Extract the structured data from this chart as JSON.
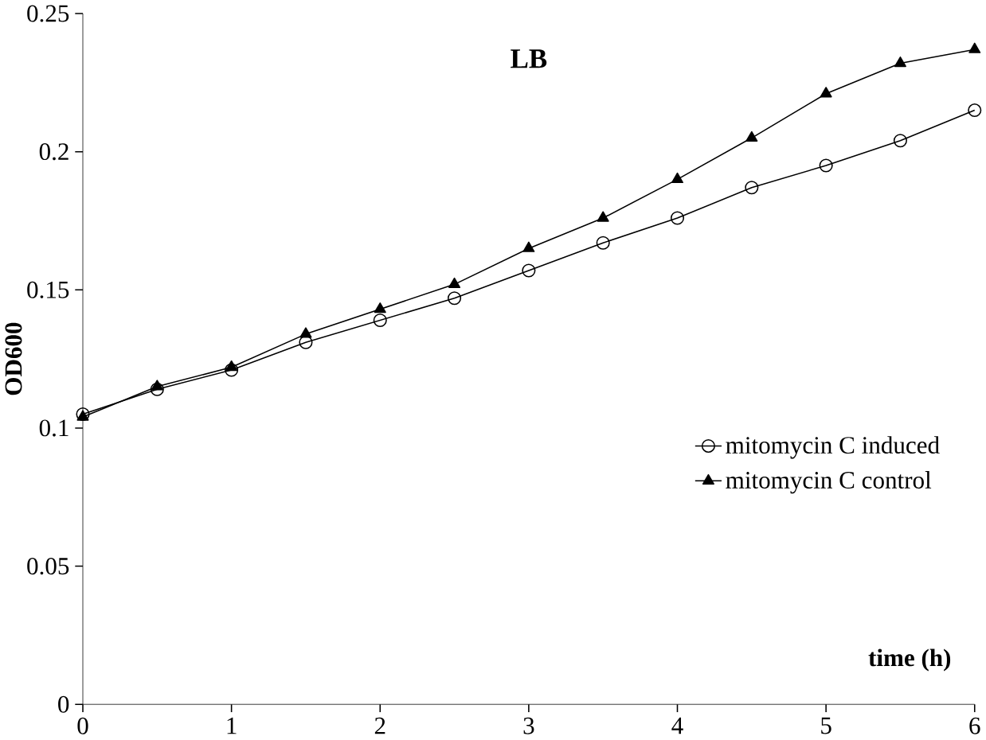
{
  "chart_data": {
    "type": "line",
    "title": "LB",
    "xlabel": "time (h)",
    "ylabel": "OD600",
    "x": [
      0,
      0.5,
      1,
      1.5,
      2,
      2.5,
      3,
      3.5,
      4,
      4.5,
      5,
      5.5,
      6
    ],
    "series": [
      {
        "name": "mitomycin  C induced",
        "color": "#000000",
        "marker": "circle",
        "values": [
          0.105,
          0.114,
          0.121,
          0.131,
          0.139,
          0.147,
          0.157,
          0.167,
          0.176,
          0.187,
          0.195,
          0.204,
          0.215
        ]
      },
      {
        "name": "mitomycin C control",
        "color": "#000000",
        "marker": "triangle",
        "values": [
          0.104,
          0.115,
          0.122,
          0.134,
          0.143,
          0.152,
          0.165,
          0.176,
          0.19,
          0.205,
          0.221,
          0.232,
          0.237
        ]
      }
    ],
    "xlim": [
      0,
      6
    ],
    "xticks": [
      0,
      1,
      2,
      3,
      4,
      5,
      6
    ],
    "ylim": [
      0,
      0.25
    ],
    "yticks": [
      0,
      0.05,
      0.1,
      0.15,
      0.2,
      0.25
    ],
    "legend": "bottom right",
    "grid": false,
    "line_style": "solid"
  }
}
